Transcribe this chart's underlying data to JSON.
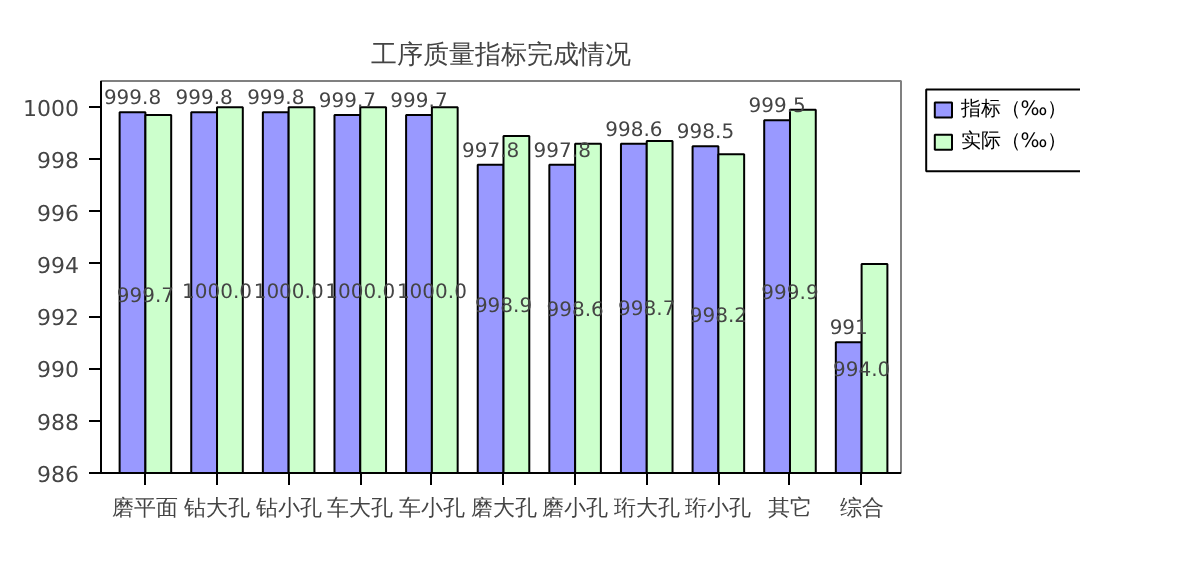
{
  "chart_data": {
    "type": "bar",
    "title": "工序质量指标完成情况",
    "categories": [
      "磨平面",
      "钻大孔",
      "钻小孔",
      "车大孔",
      "车小孔",
      "磨大孔",
      "磨小孔",
      "珩大孔",
      "珩小孔",
      "其它",
      "综合"
    ],
    "series": [
      {
        "name": "指标（‰）",
        "color": "#9999ff",
        "values": [
          999.8,
          999.8,
          999.8,
          999.7,
          999.7,
          997.8,
          997.8,
          998.6,
          998.5,
          999.5,
          991
        ],
        "value_labels": [
          "999.8",
          "999.8",
          "999.8",
          "999.7",
          "999.7",
          "997.8",
          "997.8",
          "998.6",
          "998.5",
          "999.5",
          "991"
        ]
      },
      {
        "name": "实际（‰）",
        "color": "#ccffcc",
        "values": [
          999.7,
          1000.0,
          1000.0,
          1000.0,
          1000.0,
          998.9,
          998.6,
          998.7,
          998.2,
          999.9,
          994.0
        ],
        "value_labels": [
          "999.7",
          "1000.0",
          "1000.0",
          "1000.0",
          "1000.0",
          "998.9",
          "998.6",
          "998.7",
          "998.2",
          "999.9",
          "994.0"
        ]
      }
    ],
    "ylim": [
      986,
      1001
    ],
    "yticks": [
      986,
      988,
      990,
      992,
      994,
      996,
      998,
      1000
    ],
    "grid": false,
    "legend": "top right"
  }
}
